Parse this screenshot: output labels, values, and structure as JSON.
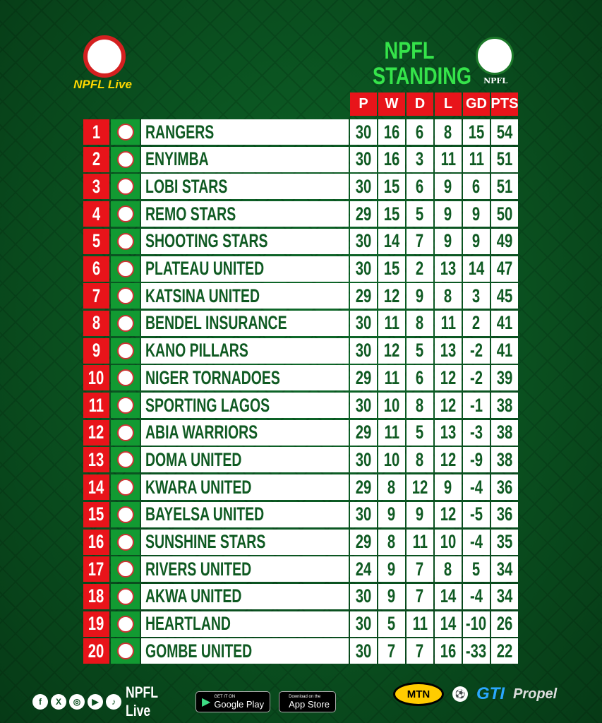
{
  "header": {
    "brand_logo_text": "NPFL Live",
    "title_line1": "NPFL",
    "title_line2": "STANDING",
    "badge_text": "NPFL"
  },
  "columns": [
    "P",
    "W",
    "D",
    "L",
    "GD",
    "PTS"
  ],
  "rows": [
    {
      "pos": "1",
      "team": "RANGERS",
      "p": "30",
      "w": "16",
      "d": "6",
      "l": "8",
      "gd": "15",
      "pts": "54"
    },
    {
      "pos": "2",
      "team": "ENYIMBA",
      "p": "30",
      "w": "16",
      "d": "3",
      "l": "11",
      "gd": "11",
      "pts": "51"
    },
    {
      "pos": "3",
      "team": "LOBI STARS",
      "p": "30",
      "w": "15",
      "d": "6",
      "l": "9",
      "gd": "6",
      "pts": "51"
    },
    {
      "pos": "4",
      "team": "REMO STARS",
      "p": "29",
      "w": "15",
      "d": "5",
      "l": "9",
      "gd": "9",
      "pts": "50"
    },
    {
      "pos": "5",
      "team": "SHOOTING STARS",
      "p": "30",
      "w": "14",
      "d": "7",
      "l": "9",
      "gd": "9",
      "pts": "49"
    },
    {
      "pos": "6",
      "team": "PLATEAU UNITED",
      "p": "30",
      "w": "15",
      "d": "2",
      "l": "13",
      "gd": "14",
      "pts": "47"
    },
    {
      "pos": "7",
      "team": "KATSINA UNITED",
      "p": "29",
      "w": "12",
      "d": "9",
      "l": "8",
      "gd": "3",
      "pts": "45"
    },
    {
      "pos": "8",
      "team": "BENDEL INSURANCE",
      "p": "30",
      "w": "11",
      "d": "8",
      "l": "11",
      "gd": "2",
      "pts": "41"
    },
    {
      "pos": "9",
      "team": "KANO PILLARS",
      "p": "30",
      "w": "12",
      "d": "5",
      "l": "13",
      "gd": "-2",
      "pts": "41"
    },
    {
      "pos": "10",
      "team": "NIGER TORNADOES",
      "p": "29",
      "w": "11",
      "d": "6",
      "l": "12",
      "gd": "-2",
      "pts": "39"
    },
    {
      "pos": "11",
      "team": "SPORTING LAGOS",
      "p": "30",
      "w": "10",
      "d": "8",
      "l": "12",
      "gd": "-1",
      "pts": "38"
    },
    {
      "pos": "12",
      "team": "ABIA WARRIORS",
      "p": "29",
      "w": "11",
      "d": "5",
      "l": "13",
      "gd": "-3",
      "pts": "38"
    },
    {
      "pos": "13",
      "team": "DOMA UNITED",
      "p": "30",
      "w": "10",
      "d": "8",
      "l": "12",
      "gd": "-9",
      "pts": "38"
    },
    {
      "pos": "14",
      "team": "KWARA UNITED",
      "p": "29",
      "w": "8",
      "d": "12",
      "l": "9",
      "gd": "-4",
      "pts": "36"
    },
    {
      "pos": "15",
      "team": "BAYELSA UNITED",
      "p": "30",
      "w": "9",
      "d": "9",
      "l": "12",
      "gd": "-5",
      "pts": "36"
    },
    {
      "pos": "16",
      "team": "SUNSHINE STARS",
      "p": "29",
      "w": "8",
      "d": "11",
      "l": "10",
      "gd": "-4",
      "pts": "35"
    },
    {
      "pos": "17",
      "team": "RIVERS UNITED",
      "p": "24",
      "w": "9",
      "d": "7",
      "l": "8",
      "gd": "5",
      "pts": "34"
    },
    {
      "pos": "18",
      "team": "AKWA UNITED",
      "p": "30",
      "w": "9",
      "d": "7",
      "l": "14",
      "gd": "-4",
      "pts": "34"
    },
    {
      "pos": "19",
      "team": "HEARTLAND",
      "p": "30",
      "w": "5",
      "d": "11",
      "l": "14",
      "gd": "-10",
      "pts": "26"
    },
    {
      "pos": "20",
      "team": "GOMBE UNITED",
      "p": "30",
      "w": "7",
      "d": "7",
      "l": "16",
      "gd": "-33",
      "pts": "22"
    }
  ],
  "footer": {
    "social_icons": [
      "f",
      "X",
      "◎",
      "▶",
      "♪"
    ],
    "handle": "NPFL Live",
    "google_small": "GET IT ON",
    "google_big": "Google Play",
    "apple_small": "Download on the",
    "apple_big": "App Store",
    "sponsors": {
      "mtn": "MTN",
      "gti": "GTI",
      "propel": "Propel"
    }
  },
  "colors": {
    "accent_red": "#e8141a",
    "bg_green": "#0a4f1f",
    "text_green": "#0f5a22",
    "crest_green": "#129a32"
  }
}
